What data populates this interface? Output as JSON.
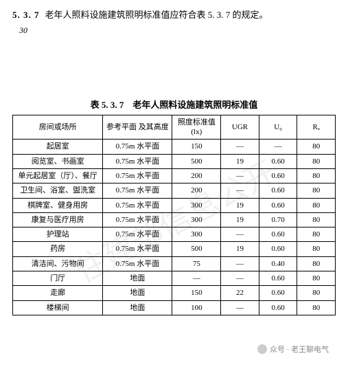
{
  "heading": {
    "num": "5. 3. 7",
    "text": "老年人照料设施建筑照明标准值应符合表 5. 3. 7 的规定。"
  },
  "pageNumber": "30",
  "tableTitle": "表 5. 3. 7　老年人照料设施建筑照明标准值",
  "columns": {
    "room": "房间或场所",
    "refPlane": "参考平面\n及其高度",
    "lx": "照度标准值\n(lx)",
    "ugr": "UGR",
    "u0": "U₀",
    "ra": "Rₐ"
  },
  "rows": [
    {
      "room": "起居室",
      "ref": "0.75m 水平面",
      "lx": "150",
      "ugr": "—",
      "u0": "—",
      "ra": "80"
    },
    {
      "room": "阅览室、书画室",
      "ref": "0.75m 水平面",
      "lx": "500",
      "ugr": "19",
      "u0": "0.60",
      "ra": "80"
    },
    {
      "room": "单元起居室（厅）、餐厅",
      "ref": "0.75m 水平面",
      "lx": "200",
      "ugr": "—",
      "u0": "0.60",
      "ra": "80"
    },
    {
      "room": "卫生间、浴室、盥洗室",
      "ref": "0.75m 水平面",
      "lx": "200",
      "ugr": "—",
      "u0": "0.60",
      "ra": "80"
    },
    {
      "room": "棋牌室、健身用房",
      "ref": "0.75m 水平面",
      "lx": "300",
      "ugr": "19",
      "u0": "0.60",
      "ra": "80"
    },
    {
      "room": "康复与医疗用房",
      "ref": "0.75m 水平面",
      "lx": "300",
      "ugr": "19",
      "u0": "0.70",
      "ra": "80"
    },
    {
      "room": "护理站",
      "ref": "0.75m 水平面",
      "lx": "300",
      "ugr": "—",
      "u0": "0.60",
      "ra": "80"
    },
    {
      "room": "药房",
      "ref": "0.75m 水平面",
      "lx": "500",
      "ugr": "19",
      "u0": "0.60",
      "ra": "80"
    },
    {
      "room": "清洁间、污物间",
      "ref": "0.75m 水平面",
      "lx": "75",
      "ugr": "—",
      "u0": "0.40",
      "ra": "80"
    },
    {
      "room": "门厅",
      "ref": "地面",
      "lx": "—",
      "ugr": "—",
      "u0": "0.60",
      "ra": "80"
    },
    {
      "room": "走廊",
      "ref": "地面",
      "lx": "150",
      "ugr": "22",
      "u0": "0.60",
      "ra": "80"
    },
    {
      "room": "楼梯间",
      "ref": "地面",
      "lx": "100",
      "ugr": "—",
      "u0": "0.60",
      "ra": "80"
    }
  ],
  "watermark": "住建部信息公开",
  "footerMark": "众号 · 老王聊电气"
}
